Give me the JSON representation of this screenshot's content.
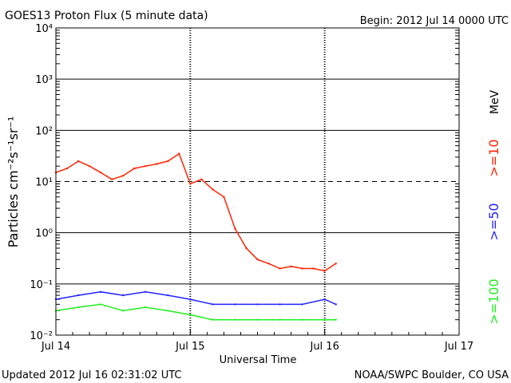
{
  "header": {
    "title": "GOES13 Proton Flux (5 minute data)",
    "begin": "Begin: 2012 Jul 14 0000 UTC"
  },
  "footer": {
    "updated": "Updated 2012 Jul 16 02:31:02 UTC",
    "source": "NOAA/SWPC Boulder, CO USA"
  },
  "chart_data": {
    "type": "line",
    "title": "GOES13 Proton Flux (5 minute data)",
    "xlabel": "Universal Time",
    "ylabel": "Particles cm⁻²s⁻¹sr⁻¹",
    "yscale": "log",
    "ylim": [
      0.01,
      10000
    ],
    "xlim": [
      "2012-07-14 00:00",
      "2012-07-17 00:00"
    ],
    "x_tick_labels": [
      "Jul 14",
      "Jul 15",
      "Jul 16",
      "Jul 17"
    ],
    "y_tick_labels": [
      "10⁻²",
      "10⁻¹",
      "10⁰",
      "10¹",
      "10²",
      "10³",
      "10⁴"
    ],
    "thresholds": [
      {
        "value": 10,
        "style": "dashed"
      }
    ],
    "grid": true,
    "legend": {
      "placement": "right",
      "unit": "MeV",
      "entries": [
        {
          "label": ">=10",
          "color": "#ff2200"
        },
        {
          "label": ">=50",
          "color": "#2222ff"
        },
        {
          "label": ">=100",
          "color": "#22ee22"
        }
      ]
    },
    "series": [
      {
        "name": ">=10",
        "color": "#ff2200",
        "x": [
          "2012-07-14 00:00",
          "2012-07-14 02:00",
          "2012-07-14 04:00",
          "2012-07-14 06:00",
          "2012-07-14 08:00",
          "2012-07-14 10:00",
          "2012-07-14 12:00",
          "2012-07-14 14:00",
          "2012-07-14 16:00",
          "2012-07-14 18:00",
          "2012-07-14 20:00",
          "2012-07-14 22:00",
          "2012-07-15 00:00",
          "2012-07-15 02:00",
          "2012-07-15 04:00",
          "2012-07-15 06:00",
          "2012-07-15 08:00",
          "2012-07-15 10:00",
          "2012-07-15 12:00",
          "2012-07-15 14:00",
          "2012-07-15 16:00",
          "2012-07-15 18:00",
          "2012-07-15 20:00",
          "2012-07-15 22:00",
          "2012-07-16 00:00",
          "2012-07-16 02:00"
        ],
        "values": [
          15,
          18,
          25,
          20,
          15,
          11,
          13,
          18,
          20,
          22,
          25,
          35,
          9,
          11,
          7,
          5,
          1.2,
          0.5,
          0.3,
          0.25,
          0.2,
          0.22,
          0.2,
          0.2,
          0.18,
          0.25
        ]
      },
      {
        "name": ">=50",
        "color": "#2222ff",
        "x": [
          "2012-07-14 00:00",
          "2012-07-14 04:00",
          "2012-07-14 08:00",
          "2012-07-14 12:00",
          "2012-07-14 16:00",
          "2012-07-14 20:00",
          "2012-07-15 00:00",
          "2012-07-15 04:00",
          "2012-07-15 08:00",
          "2012-07-15 12:00",
          "2012-07-15 16:00",
          "2012-07-15 20:00",
          "2012-07-16 00:00",
          "2012-07-16 02:00"
        ],
        "values": [
          0.05,
          0.06,
          0.07,
          0.06,
          0.07,
          0.06,
          0.05,
          0.04,
          0.04,
          0.04,
          0.04,
          0.04,
          0.05,
          0.04
        ]
      },
      {
        "name": ">=100",
        "color": "#22ee22",
        "x": [
          "2012-07-14 00:00",
          "2012-07-14 04:00",
          "2012-07-14 08:00",
          "2012-07-14 12:00",
          "2012-07-14 16:00",
          "2012-07-14 20:00",
          "2012-07-15 00:00",
          "2012-07-15 04:00",
          "2012-07-15 08:00",
          "2012-07-15 12:00",
          "2012-07-15 16:00",
          "2012-07-15 20:00",
          "2012-07-16 00:00",
          "2012-07-16 02:00"
        ],
        "values": [
          0.03,
          0.035,
          0.04,
          0.03,
          0.035,
          0.03,
          0.025,
          0.02,
          0.02,
          0.02,
          0.02,
          0.02,
          0.02,
          0.02
        ]
      }
    ]
  }
}
